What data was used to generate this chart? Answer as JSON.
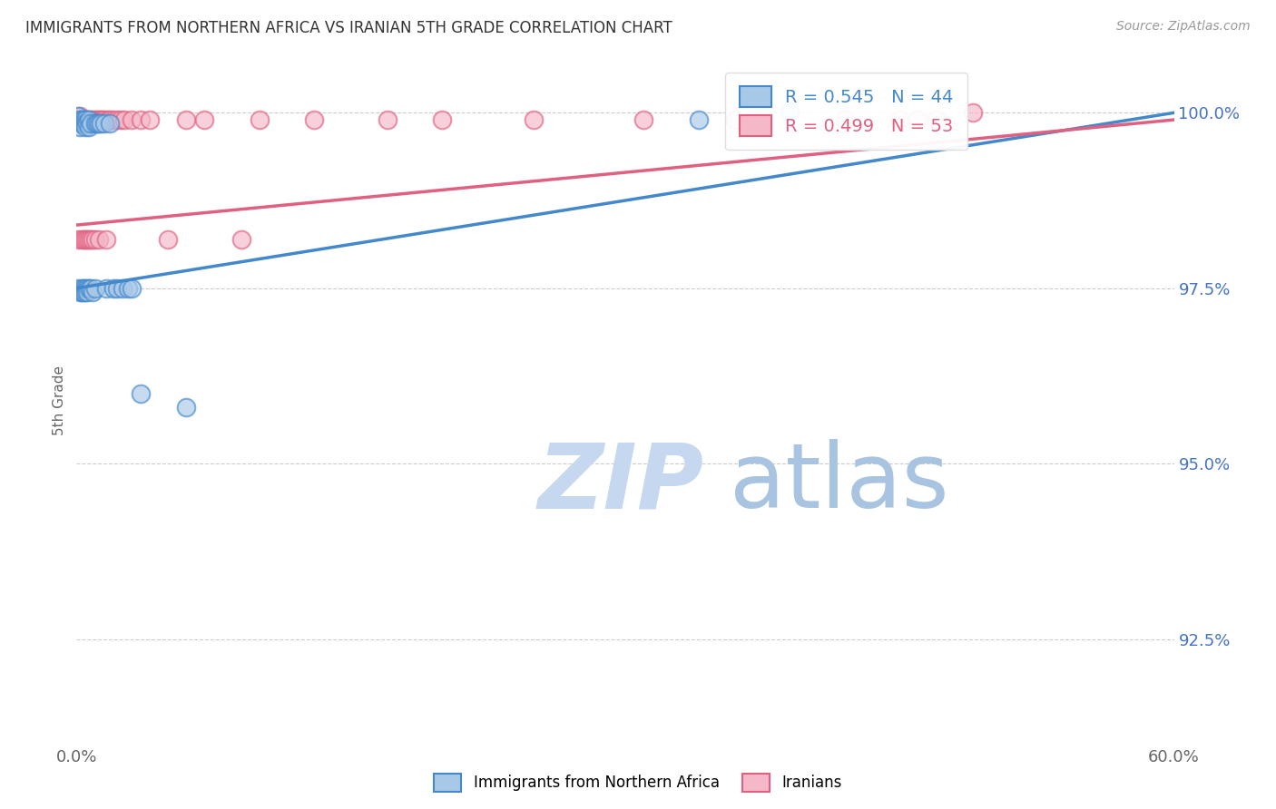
{
  "title": "IMMIGRANTS FROM NORTHERN AFRICA VS IRANIAN 5TH GRADE CORRELATION CHART",
  "source": "Source: ZipAtlas.com",
  "ylabel": "5th Grade",
  "yaxis_labels": [
    "100.0%",
    "97.5%",
    "95.0%",
    "92.5%"
  ],
  "yaxis_values": [
    1.0,
    0.975,
    0.95,
    0.925
  ],
  "xlim": [
    0.0,
    0.6
  ],
  "ylim": [
    0.91,
    1.008
  ],
  "legend_blue_R": "0.545",
  "legend_blue_N": "44",
  "legend_pink_R": "0.499",
  "legend_pink_N": "53",
  "color_blue": "#a8c8e8",
  "color_pink": "#f4b8c8",
  "line_blue": "#4488cc",
  "line_pink": "#e06080",
  "watermark_zip_color": "#c8d8f0",
  "watermark_atlas_color": "#a0b8d8",
  "blue_scatter_x": [
    0.001,
    0.001,
    0.002,
    0.002,
    0.002,
    0.003,
    0.003,
    0.003,
    0.003,
    0.004,
    0.004,
    0.004,
    0.004,
    0.005,
    0.005,
    0.005,
    0.005,
    0.005,
    0.006,
    0.006,
    0.006,
    0.007,
    0.007,
    0.007,
    0.008,
    0.008,
    0.009,
    0.01,
    0.01,
    0.011,
    0.012,
    0.013,
    0.015,
    0.016,
    0.018,
    0.02,
    0.022,
    0.025,
    0.028,
    0.03,
    0.035,
    0.06,
    0.34,
    0.39
  ],
  "blue_scatter_y": [
    0.9995,
    0.975,
    0.999,
    0.998,
    0.9745,
    0.999,
    0.9985,
    0.975,
    0.9745,
    0.999,
    0.9985,
    0.975,
    0.9745,
    0.999,
    0.9985,
    0.998,
    0.975,
    0.9745,
    0.9985,
    0.975,
    0.9745,
    0.999,
    0.998,
    0.975,
    0.9985,
    0.975,
    0.9745,
    0.9985,
    0.975,
    0.9985,
    0.9985,
    0.9985,
    0.9985,
    0.975,
    0.9985,
    0.975,
    0.975,
    0.975,
    0.975,
    0.975,
    0.96,
    0.958,
    0.999,
    1.0
  ],
  "pink_scatter_x": [
    0.001,
    0.001,
    0.002,
    0.002,
    0.003,
    0.003,
    0.004,
    0.004,
    0.005,
    0.005,
    0.006,
    0.006,
    0.006,
    0.007,
    0.007,
    0.008,
    0.008,
    0.009,
    0.009,
    0.01,
    0.01,
    0.011,
    0.012,
    0.012,
    0.013,
    0.014,
    0.015,
    0.016,
    0.017,
    0.018,
    0.02,
    0.022,
    0.024,
    0.026,
    0.03,
    0.035,
    0.04,
    0.05,
    0.06,
    0.07,
    0.09,
    0.1,
    0.13,
    0.17,
    0.2,
    0.25,
    0.31,
    0.36,
    0.42,
    0.45,
    0.46,
    0.47,
    0.49
  ],
  "pink_scatter_y": [
    0.999,
    0.982,
    0.9995,
    0.999,
    0.999,
    0.982,
    0.999,
    0.982,
    0.999,
    0.982,
    0.999,
    0.9985,
    0.982,
    0.999,
    0.982,
    0.999,
    0.982,
    0.999,
    0.982,
    0.999,
    0.982,
    0.999,
    0.999,
    0.982,
    0.999,
    0.999,
    0.999,
    0.982,
    0.999,
    0.999,
    0.999,
    0.999,
    0.999,
    0.999,
    0.999,
    0.999,
    0.999,
    0.982,
    0.999,
    0.999,
    0.982,
    0.999,
    0.999,
    0.999,
    0.999,
    0.999,
    0.999,
    0.999,
    0.999,
    0.999,
    0.999,
    0.999,
    1.0
  ],
  "blue_trendline": [
    0.0,
    0.975,
    0.6,
    1.0
  ],
  "pink_trendline": [
    0.0,
    0.984,
    0.6,
    0.999
  ]
}
